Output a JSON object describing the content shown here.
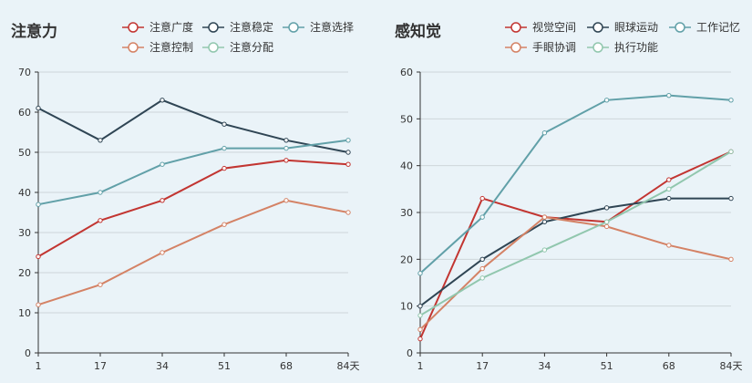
{
  "colors": {
    "background": "#eaf3f8",
    "series": [
      "#c23531",
      "#2f4554",
      "#61a0a8",
      "#d48265",
      "#91c7ae"
    ]
  },
  "chart_data": [
    {
      "type": "line",
      "title": "注意力",
      "x_unit": "天",
      "categories": [
        "1",
        "17",
        "34",
        "51",
        "68",
        "84"
      ],
      "ylim": [
        0,
        70
      ],
      "yticks": [
        0,
        10,
        20,
        30,
        40,
        50,
        60,
        70
      ],
      "grid": true,
      "legend_position": "top-right",
      "series": [
        {
          "name": "注意广度",
          "values": [
            24,
            33,
            38,
            46,
            48,
            47
          ]
        },
        {
          "name": "注意稳定",
          "values": [
            61,
            53,
            63,
            57,
            53,
            50
          ]
        },
        {
          "name": "注意选择",
          "values": [
            37,
            40,
            47,
            51,
            51,
            53
          ]
        },
        {
          "name": "注意控制",
          "values": [
            12,
            17,
            25,
            32,
            38,
            35
          ]
        },
        {
          "name": "注意分配",
          "values": [
            null,
            null,
            null,
            null,
            null,
            null
          ]
        }
      ]
    },
    {
      "type": "line",
      "title": "感知觉",
      "x_unit": "天",
      "categories": [
        "1",
        "17",
        "34",
        "51",
        "68",
        "84"
      ],
      "ylim": [
        0,
        60
      ],
      "yticks": [
        0,
        10,
        20,
        30,
        40,
        50,
        60
      ],
      "grid": true,
      "legend_position": "top-right",
      "series": [
        {
          "name": "视觉空间",
          "values": [
            3,
            33,
            29,
            28,
            37,
            43
          ]
        },
        {
          "name": "眼球运动",
          "values": [
            10,
            20,
            28,
            31,
            33,
            33
          ]
        },
        {
          "name": "工作记忆",
          "values": [
            17,
            29,
            47,
            54,
            55,
            54
          ]
        },
        {
          "name": "手眼协调",
          "values": [
            5,
            18,
            29,
            27,
            23,
            20
          ]
        },
        {
          "name": "执行功能",
          "values": [
            8,
            16,
            22,
            28,
            35,
            43
          ]
        }
      ]
    }
  ]
}
